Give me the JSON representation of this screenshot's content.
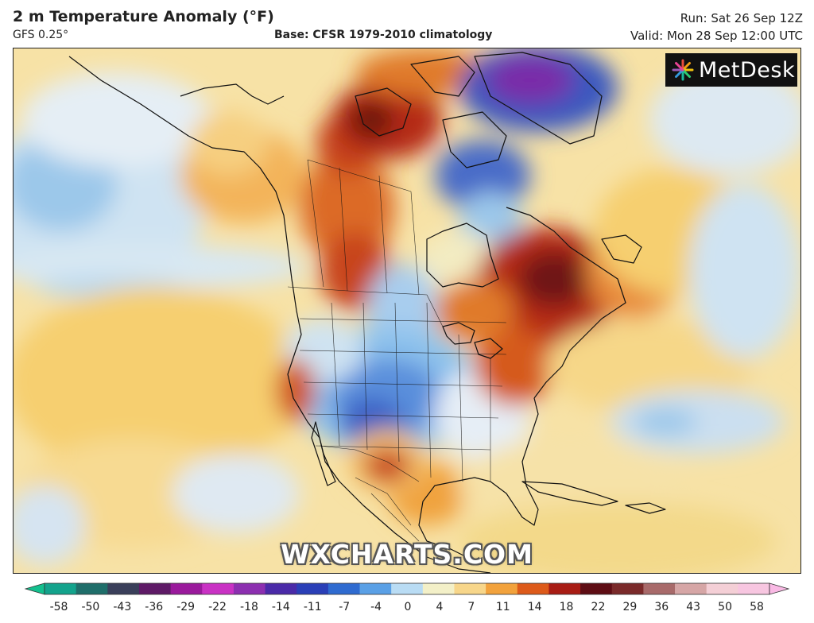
{
  "header": {
    "title": "2 m Temperature Anomaly (°F)",
    "model": "GFS 0.25°",
    "base": "Base: CFSR 1979-2010 climatology",
    "run": "Run: Sat 26 Sep 12Z",
    "valid": "Valid: Mon 28 Sep 12:00 UTC"
  },
  "logo": {
    "text": "MetDesk",
    "icon": "starburst-logo-icon"
  },
  "watermark": "WXCHARTS.COM",
  "colorbar": {
    "labels": [
      "-58",
      "-50",
      "-43",
      "-36",
      "-29",
      "-22",
      "-18",
      "-14",
      "-11",
      "-7",
      "-4",
      "0",
      "4",
      "7",
      "11",
      "14",
      "18",
      "22",
      "29",
      "36",
      "43",
      "50",
      "58"
    ],
    "colors": [
      "#13a38c",
      "#1f6e6a",
      "#3a3f5a",
      "#5e1a66",
      "#9a1a9c",
      "#c932c4",
      "#8c2fb0",
      "#4a2aa8",
      "#2a3fb7",
      "#2f6bd0",
      "#5aa0e6",
      "#b9dcf4",
      "#f3f0c8",
      "#f7d68a",
      "#f2a23c",
      "#dd5a1a",
      "#a81c14",
      "#5e0d14",
      "#7a2a2a",
      "#a86a6a",
      "#d6a6a6",
      "#f4cfd6",
      "#f7c6e0"
    ],
    "left_arrow_color": "#13c08e",
    "right_arrow_color": "#f9b9e4"
  },
  "colors": {
    "cold_strong": "#2c4fb7",
    "cold": "#8cc1ec",
    "neutral": "#e9f1f7",
    "warm_mild": "#f6dc8e",
    "warm": "#f0a23c",
    "hot": "#c8401a",
    "very_hot": "#7a1414",
    "extreme_cold": "#6a2aa8"
  }
}
